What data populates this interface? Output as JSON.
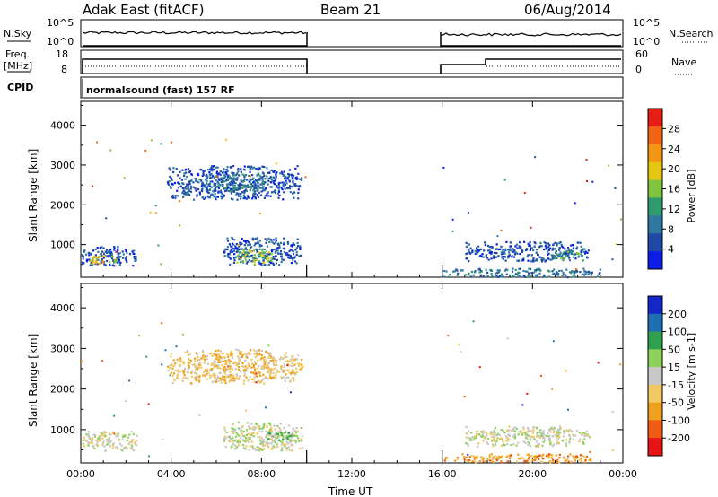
{
  "header": {
    "station": "Adak East (fitACF)",
    "beam": "Beam 21",
    "date": "06/Aug/2014"
  },
  "panels": {
    "nsky_label": "N.Sky",
    "nsky_top_tick": "10^5",
    "nsky_bottom_tick": "10^0",
    "nsearch_label": "N.Search",
    "nsearch_top_tick": "10^5",
    "nsearch_bottom_tick": "10^0",
    "freq_label": "Freq.",
    "freq_unit": "[MHz]",
    "freq_top_tick": "18",
    "freq_bottom_tick": "8",
    "nave_label": "Nave",
    "nave_top_tick": "60",
    "nave_bottom_tick": "0",
    "cpid_label": "CPID",
    "cpid_text": "normalsound (fast) 157 RF"
  },
  "colors": {
    "power_scale": [
      "#0a1ee6",
      "#1e4aa6",
      "#2e78a0",
      "#2e9a6e",
      "#7ec43c",
      "#e6c414",
      "#f09614",
      "#f06414",
      "#e61e14"
    ],
    "velocity_scale": [
      "#e61414",
      "#f05a14",
      "#f0a01e",
      "#f0c864",
      "#c8c8c8",
      "#8cd25a",
      "#2ea050",
      "#1e6eb4",
      "#1428c8"
    ]
  },
  "chart_data": [
    {
      "type": "heatmap",
      "name": "power",
      "xlabel": "",
      "ylabel": "Slant Range [km]",
      "xlim": [
        0,
        24
      ],
      "ylim": [
        180,
        4600
      ],
      "yticks": [
        1000,
        2000,
        3000,
        4000
      ],
      "xticks": [
        0,
        4,
        8,
        12,
        16,
        20,
        24
      ],
      "colorbar_label": "Power [dB]",
      "colorbar_ticks": [
        "4",
        "8",
        "12",
        "16",
        "20",
        "24",
        "28"
      ],
      "colorbar_range": [
        0,
        32
      ],
      "regions": [
        {
          "t0": 3.8,
          "t1": 9.8,
          "r0": 2150,
          "r1": 3000,
          "level": 1,
          "note": "patch"
        },
        {
          "t0": 5.2,
          "t1": 8.2,
          "r0": 2350,
          "r1": 2800,
          "level": 2
        },
        {
          "t0": 0.0,
          "t1": 2.5,
          "r0": 480,
          "r1": 980,
          "level": 1
        },
        {
          "t0": 0.3,
          "t1": 1.6,
          "r0": 520,
          "r1": 760,
          "level": 5
        },
        {
          "t0": 6.3,
          "t1": 9.8,
          "r0": 500,
          "r1": 1200,
          "level": 1
        },
        {
          "t0": 6.8,
          "t1": 8.5,
          "r0": 520,
          "r1": 900,
          "level": 4
        },
        {
          "t0": 17.0,
          "t1": 22.5,
          "r0": 600,
          "r1": 1100,
          "level": 1
        },
        {
          "t0": 20.8,
          "t1": 22.2,
          "r0": 620,
          "r1": 860,
          "level": 3
        },
        {
          "t0": 16.0,
          "t1": 23.0,
          "r0": 200,
          "r1": 420,
          "level": 2
        }
      ]
    },
    {
      "type": "heatmap",
      "name": "velocity",
      "xlabel": "Time UT",
      "ylabel": "Slant Range [km]",
      "xlim": [
        0,
        24
      ],
      "ylim": [
        180,
        4600
      ],
      "yticks": [
        1000,
        2000,
        3000,
        4000
      ],
      "xticks": [
        0,
        4,
        8,
        12,
        16,
        20,
        24
      ],
      "xticklabels": [
        "00:00",
        "04:00",
        "08:00",
        "12:00",
        "16:00",
        "20:00",
        "00:00"
      ],
      "colorbar_label": "Velocity [m s-1]",
      "colorbar_ticks": [
        "-200",
        "-100",
        "-50",
        "-15",
        "15",
        "50",
        "100",
        "200"
      ],
      "regions": [
        {
          "t0": 3.8,
          "t1": 9.8,
          "r0": 2150,
          "r1": 3000,
          "level": 3
        },
        {
          "t0": 0.0,
          "t1": 2.5,
          "r0": 480,
          "r1": 980,
          "level": 4
        },
        {
          "t0": 6.3,
          "t1": 9.8,
          "r0": 500,
          "r1": 1200,
          "level": 4
        },
        {
          "t0": 8.0,
          "t1": 9.5,
          "r0": 700,
          "r1": 1000,
          "level": 5
        },
        {
          "t0": 17.0,
          "t1": 22.5,
          "r0": 600,
          "r1": 1100,
          "level": 4
        },
        {
          "t0": 16.0,
          "t1": 23.0,
          "r0": 200,
          "r1": 420,
          "level": 2
        }
      ]
    }
  ]
}
